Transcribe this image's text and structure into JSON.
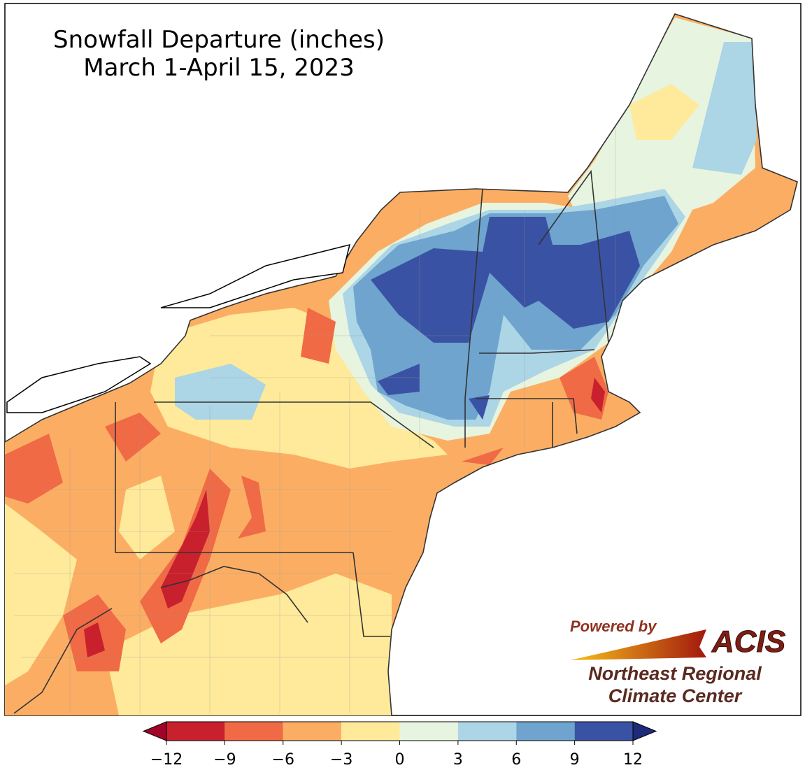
{
  "map": {
    "title": [
      "Snowfall Departure (inches)",
      "March 1-April 15, 2023"
    ],
    "colorbar": {
      "ticks": [
        {
          "value": -12,
          "label": "−12"
        },
        {
          "value": -9,
          "label": "−9"
        },
        {
          "value": -6,
          "label": "−6"
        },
        {
          "value": -3,
          "label": "−3"
        },
        0,
        3,
        6,
        9,
        12
      ],
      "colors": [
        "#c8202d",
        "#ef6a45",
        "#fbae63",
        "#feea9a",
        "#e7f4df",
        "#acd5e6",
        "#6ea4cd",
        "#3a52a3"
      ],
      "under_color": "#a20328",
      "over_color": "#1e2a7a"
    },
    "logo": {
      "powered_by": "Powered by",
      "name": "ACIS",
      "org_line1": "Northeast Regional",
      "org_line2": "Climate Center"
    }
  }
}
